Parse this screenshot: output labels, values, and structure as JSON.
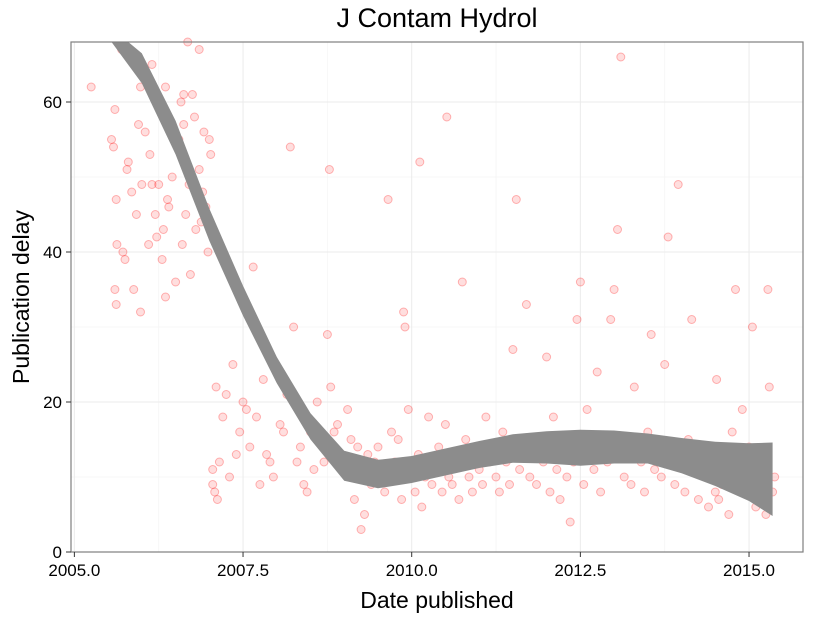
{
  "chart_data": {
    "type": "scatter",
    "title": "J Contam Hydrol",
    "xlabel": "Date published",
    "ylabel": "Publication delay",
    "xlim": [
      2004.95,
      2015.8
    ],
    "ylim": [
      0,
      68
    ],
    "x_ticks": [
      2005.0,
      2007.5,
      2010.0,
      2012.5,
      2015.0
    ],
    "x_tick_labels": [
      "2005.0",
      "2007.5",
      "2010.0",
      "2012.5",
      "2015.0"
    ],
    "y_ticks": [
      0,
      20,
      40,
      60
    ],
    "y_tick_labels": [
      "0",
      "20",
      "40",
      "60"
    ],
    "grid": true,
    "legend": "none",
    "colors": {
      "points": "#ff0000",
      "smooth_band": "#8c8c8c",
      "grid_major": "#ebebeb",
      "grid_minor": "#f5f5f5",
      "panel_border": "#7f7f7f"
    },
    "points": [
      [
        2005.25,
        62
      ],
      [
        2005.55,
        55
      ],
      [
        2005.6,
        59
      ],
      [
        2005.58,
        54
      ],
      [
        2005.62,
        47
      ],
      [
        2005.63,
        41
      ],
      [
        2005.6,
        35
      ],
      [
        2005.62,
        33
      ],
      [
        2005.7,
        67
      ],
      [
        2005.72,
        40
      ],
      [
        2005.75,
        39
      ],
      [
        2005.78,
        51
      ],
      [
        2005.8,
        52
      ],
      [
        2005.85,
        48
      ],
      [
        2005.88,
        35
      ],
      [
        2005.92,
        45
      ],
      [
        2005.95,
        57
      ],
      [
        2005.98,
        32
      ],
      [
        2006.0,
        49
      ],
      [
        2006.05,
        56
      ],
      [
        2006.1,
        41
      ],
      [
        2006.12,
        53
      ],
      [
        2006.15,
        49
      ],
      [
        2006.2,
        45
      ],
      [
        2006.22,
        42
      ],
      [
        2006.25,
        49
      ],
      [
        2006.3,
        39
      ],
      [
        2006.32,
        43
      ],
      [
        2006.35,
        34
      ],
      [
        2006.38,
        47
      ],
      [
        2006.4,
        46
      ],
      [
        2006.45,
        50
      ],
      [
        2006.5,
        36
      ],
      [
        2006.55,
        55
      ],
      [
        2006.58,
        60
      ],
      [
        2006.6,
        41
      ],
      [
        2006.62,
        57
      ],
      [
        2006.65,
        45
      ],
      [
        2006.7,
        49
      ],
      [
        2006.72,
        37
      ],
      [
        2006.75,
        61
      ],
      [
        2006.78,
        58
      ],
      [
        2006.8,
        43
      ],
      [
        2006.85,
        51
      ],
      [
        2006.88,
        44
      ],
      [
        2006.9,
        48
      ],
      [
        2006.92,
        56
      ],
      [
        2006.95,
        46
      ],
      [
        2006.98,
        40
      ],
      [
        2007.0,
        55
      ],
      [
        2007.02,
        53
      ],
      [
        2006.05,
        63
      ],
      [
        2006.15,
        65
      ],
      [
        2005.98,
        62
      ],
      [
        2006.35,
        62
      ],
      [
        2006.62,
        61
      ],
      [
        2006.68,
        68
      ],
      [
        2006.85,
        67
      ],
      [
        2007.05,
        11
      ],
      [
        2007.05,
        9
      ],
      [
        2007.08,
        8
      ],
      [
        2007.1,
        22
      ],
      [
        2007.12,
        7
      ],
      [
        2007.15,
        12
      ],
      [
        2007.2,
        18
      ],
      [
        2007.25,
        21
      ],
      [
        2007.3,
        10
      ],
      [
        2007.35,
        25
      ],
      [
        2007.4,
        13
      ],
      [
        2007.45,
        16
      ],
      [
        2007.5,
        20
      ],
      [
        2007.55,
        19
      ],
      [
        2007.6,
        14
      ],
      [
        2007.65,
        38
      ],
      [
        2007.7,
        18
      ],
      [
        2007.75,
        9
      ],
      [
        2007.8,
        23
      ],
      [
        2007.85,
        13
      ],
      [
        2007.9,
        12
      ],
      [
        2007.95,
        10
      ],
      [
        2008.0,
        24
      ],
      [
        2008.05,
        17
      ],
      [
        2008.1,
        16
      ],
      [
        2008.15,
        21
      ],
      [
        2008.2,
        54
      ],
      [
        2008.25,
        30
      ],
      [
        2008.3,
        12
      ],
      [
        2008.35,
        14
      ],
      [
        2008.4,
        9
      ],
      [
        2008.45,
        8
      ],
      [
        2008.5,
        16
      ],
      [
        2008.55,
        11
      ],
      [
        2008.6,
        20
      ],
      [
        2008.65,
        15
      ],
      [
        2008.7,
        12
      ],
      [
        2008.75,
        29
      ],
      [
        2008.78,
        51
      ],
      [
        2008.8,
        22
      ],
      [
        2008.85,
        16
      ],
      [
        2008.9,
        17
      ],
      [
        2008.95,
        13
      ],
      [
        2009.0,
        12
      ],
      [
        2009.05,
        19
      ],
      [
        2009.1,
        15
      ],
      [
        2009.15,
        7
      ],
      [
        2009.2,
        14
      ],
      [
        2009.25,
        3
      ],
      [
        2009.3,
        5
      ],
      [
        2009.35,
        13
      ],
      [
        2009.4,
        9
      ],
      [
        2009.45,
        12
      ],
      [
        2009.5,
        14
      ],
      [
        2009.55,
        10
      ],
      [
        2009.6,
        8
      ],
      [
        2009.65,
        47
      ],
      [
        2009.7,
        16
      ],
      [
        2009.75,
        12
      ],
      [
        2009.8,
        15
      ],
      [
        2009.85,
        7
      ],
      [
        2009.88,
        32
      ],
      [
        2009.9,
        30
      ],
      [
        2009.95,
        19
      ],
      [
        2010.0,
        11
      ],
      [
        2010.05,
        8
      ],
      [
        2010.1,
        13
      ],
      [
        2010.12,
        52
      ],
      [
        2010.15,
        6
      ],
      [
        2010.2,
        10
      ],
      [
        2010.25,
        18
      ],
      [
        2010.3,
        9
      ],
      [
        2010.35,
        12
      ],
      [
        2010.4,
        14
      ],
      [
        2010.45,
        8
      ],
      [
        2010.5,
        17
      ],
      [
        2010.52,
        58
      ],
      [
        2010.55,
        10
      ],
      [
        2010.6,
        9
      ],
      [
        2010.65,
        12
      ],
      [
        2010.7,
        7
      ],
      [
        2010.75,
        36
      ],
      [
        2010.8,
        15
      ],
      [
        2010.85,
        10
      ],
      [
        2010.9,
        8
      ],
      [
        2010.95,
        13
      ],
      [
        2011.0,
        11
      ],
      [
        2011.05,
        9
      ],
      [
        2011.1,
        18
      ],
      [
        2011.15,
        12
      ],
      [
        2011.2,
        14
      ],
      [
        2011.25,
        10
      ],
      [
        2011.3,
        8
      ],
      [
        2011.35,
        16
      ],
      [
        2011.4,
        12
      ],
      [
        2011.45,
        9
      ],
      [
        2011.5,
        27
      ],
      [
        2011.55,
        47
      ],
      [
        2011.6,
        11
      ],
      [
        2011.65,
        14
      ],
      [
        2011.7,
        33
      ],
      [
        2011.75,
        10
      ],
      [
        2011.8,
        13
      ],
      [
        2011.85,
        9
      ],
      [
        2011.9,
        15
      ],
      [
        2011.95,
        12
      ],
      [
        2012.0,
        26
      ],
      [
        2012.05,
        8
      ],
      [
        2012.1,
        18
      ],
      [
        2012.15,
        11
      ],
      [
        2012.2,
        7
      ],
      [
        2012.25,
        14
      ],
      [
        2012.3,
        10
      ],
      [
        2012.35,
        4
      ],
      [
        2012.4,
        12
      ],
      [
        2012.45,
        31
      ],
      [
        2012.5,
        36
      ],
      [
        2012.55,
        9
      ],
      [
        2012.6,
        19
      ],
      [
        2012.65,
        13
      ],
      [
        2012.7,
        11
      ],
      [
        2012.75,
        24
      ],
      [
        2012.8,
        8
      ],
      [
        2012.85,
        14
      ],
      [
        2012.9,
        12
      ],
      [
        2012.95,
        31
      ],
      [
        2013.0,
        35
      ],
      [
        2013.05,
        43
      ],
      [
        2013.1,
        66
      ],
      [
        2013.15,
        10
      ],
      [
        2013.2,
        13
      ],
      [
        2013.25,
        9
      ],
      [
        2013.3,
        22
      ],
      [
        2013.35,
        15
      ],
      [
        2013.4,
        12
      ],
      [
        2013.45,
        8
      ],
      [
        2013.5,
        16
      ],
      [
        2013.55,
        29
      ],
      [
        2013.6,
        11
      ],
      [
        2013.65,
        14
      ],
      [
        2013.7,
        10
      ],
      [
        2013.75,
        25
      ],
      [
        2013.8,
        42
      ],
      [
        2013.85,
        13
      ],
      [
        2013.9,
        9
      ],
      [
        2013.95,
        49
      ],
      [
        2014.0,
        12
      ],
      [
        2014.05,
        8
      ],
      [
        2014.1,
        15
      ],
      [
        2014.15,
        31
      ],
      [
        2014.2,
        11
      ],
      [
        2014.25,
        7
      ],
      [
        2014.3,
        14
      ],
      [
        2014.35,
        10
      ],
      [
        2014.4,
        6
      ],
      [
        2014.45,
        13
      ],
      [
        2014.5,
        8
      ],
      [
        2014.52,
        23
      ],
      [
        2014.55,
        7
      ],
      [
        2014.6,
        9
      ],
      [
        2014.65,
        12
      ],
      [
        2014.7,
        5
      ],
      [
        2014.75,
        16
      ],
      [
        2014.8,
        35
      ],
      [
        2014.85,
        11
      ],
      [
        2014.9,
        19
      ],
      [
        2014.95,
        8
      ],
      [
        2015.0,
        14
      ],
      [
        2015.05,
        30
      ],
      [
        2015.1,
        6
      ],
      [
        2015.15,
        12
      ],
      [
        2015.2,
        10
      ],
      [
        2015.25,
        5
      ],
      [
        2015.28,
        35
      ],
      [
        2015.3,
        22
      ],
      [
        2015.35,
        8
      ],
      [
        2015.38,
        10
      ]
    ],
    "smooth_lower": [
      [
        2005.55,
        68
      ],
      [
        2006.0,
        62.5
      ],
      [
        2006.5,
        53
      ],
      [
        2007.0,
        41.5
      ],
      [
        2007.5,
        31.5
      ],
      [
        2008.0,
        22.5
      ],
      [
        2008.5,
        15
      ],
      [
        2009.0,
        9.5
      ],
      [
        2009.5,
        8.5
      ],
      [
        2010.0,
        9.2
      ],
      [
        2010.5,
        10.2
      ],
      [
        2011.0,
        11.2
      ],
      [
        2011.5,
        11.9
      ],
      [
        2012.0,
        11.8
      ],
      [
        2012.5,
        11.5
      ],
      [
        2013.0,
        11.8
      ],
      [
        2013.5,
        11.8
      ],
      [
        2014.0,
        10.5
      ],
      [
        2014.5,
        8.8
      ],
      [
        2015.0,
        6.8
      ],
      [
        2015.35,
        4.8
      ]
    ],
    "smooth_upper": [
      [
        2005.8,
        68
      ],
      [
        2006.0,
        66.5
      ],
      [
        2006.5,
        57.5
      ],
      [
        2007.0,
        45.8
      ],
      [
        2007.5,
        35.5
      ],
      [
        2008.0,
        26
      ],
      [
        2008.5,
        18.5
      ],
      [
        2009.0,
        13.5
      ],
      [
        2009.5,
        12.3
      ],
      [
        2010.0,
        12.8
      ],
      [
        2010.5,
        13.8
      ],
      [
        2011.0,
        14.8
      ],
      [
        2011.5,
        15.7
      ],
      [
        2012.0,
        16.1
      ],
      [
        2012.5,
        16.3
      ],
      [
        2013.0,
        16.2
      ],
      [
        2013.5,
        15.8
      ],
      [
        2014.0,
        15.2
      ],
      [
        2014.5,
        14.7
      ],
      [
        2015.0,
        14.5
      ],
      [
        2015.35,
        14.6
      ]
    ]
  }
}
